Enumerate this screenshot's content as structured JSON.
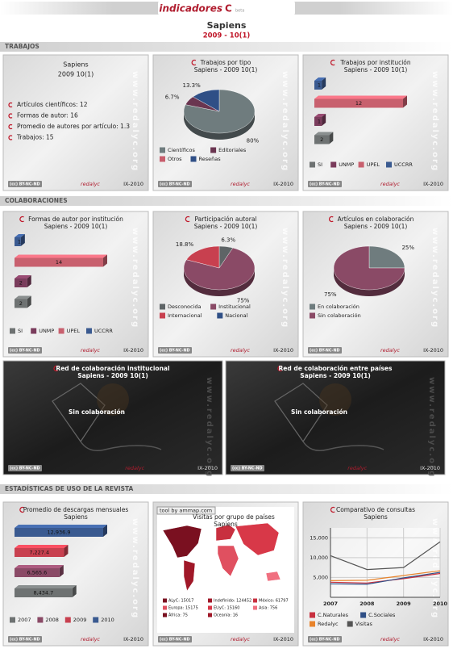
{
  "header": {
    "logo": "indicadores",
    "logo_mark": "C",
    "beta": "beta",
    "title": "Sapiens",
    "subtitle": "2009 - 10(1)"
  },
  "sections": [
    "TRABAJOS",
    "COLABORACIONES",
    "ESTADÍSTICAS DE USO DE LA REVISTA"
  ],
  "footer": {
    "license": "(cc) BY-NC-ND",
    "brand": "redalyc",
    "date": "IX-2010",
    "watermark": "www.redalyc.org"
  },
  "summary": {
    "title": "Sapiens",
    "subtitle": "2009 10(1)",
    "items": [
      "Artículos científicos: 12",
      "Formas de autor: 16",
      "Promedio de autores por artículo: 1.3",
      "Trabajos: 15"
    ]
  },
  "chart_data": [
    {
      "type": "pie",
      "title": "Trabajos por tipo",
      "subtitle": "Sapiens - 2009 10(1)",
      "categories": [
        "Científicos",
        "Editoriales",
        "Otros",
        "Reseñas"
      ],
      "values": [
        80,
        6.7,
        0,
        13.3
      ],
      "value_labels": [
        "80%",
        "6.7%",
        null,
        "13.3%"
      ],
      "colors": [
        "#6f7c7e",
        "#6a3550",
        "#c85d6c",
        "#2f4f86"
      ]
    },
    {
      "type": "hbar",
      "title": "Trabajos por institución",
      "subtitle": "Sapiens - 2009 10(1)",
      "categories": [
        "SI",
        "UNMP",
        "UPEL",
        "UCCRR"
      ],
      "values": [
        2,
        1,
        12,
        1
      ],
      "colors": [
        "#6e7272",
        "#7a3c5c",
        "#c8606e",
        "#3a5a90"
      ]
    },
    {
      "type": "hbar",
      "title": "Formas de autor por institución",
      "subtitle": "Sapiens - 2009 10(1)",
      "categories": [
        "SI",
        "UNMP",
        "UPEL",
        "UCCRR"
      ],
      "values": [
        2,
        2,
        14,
        1
      ],
      "colors": [
        "#6e7272",
        "#7a3c5c",
        "#c8606e",
        "#3a5a90"
      ]
    },
    {
      "type": "pie",
      "title": "Participación autoral",
      "subtitle": "Sapiens - 2009 10(1)",
      "categories": [
        "Desconocida",
        "Institucional",
        "Internacional",
        "Nacional"
      ],
      "values": [
        6.3,
        75,
        18.8,
        0
      ],
      "value_labels": [
        "6.3%",
        "75%",
        "18.8%",
        null
      ],
      "colors": [
        "#5e6466",
        "#8a4a66",
        "#c8404f",
        "#2f4f86"
      ]
    },
    {
      "type": "pie",
      "title": "Artículos en colaboración",
      "subtitle": "Sapiens - 2009 10(1)",
      "categories": [
        "En colaboración",
        "Sin colaboración"
      ],
      "values": [
        25,
        75
      ],
      "value_labels": [
        "25%",
        "75%"
      ],
      "colors": [
        "#6f7c7e",
        "#8a4a66"
      ]
    },
    {
      "type": "network",
      "title": "Red de colaboración institucional",
      "subtitle": "Sapiens - 2009 10(1)",
      "note": "Sin colaboración"
    },
    {
      "type": "network",
      "title": "Red de colaboración entre países",
      "subtitle": "Sapiens - 2009 10(1)",
      "note": "Sin colaboración"
    },
    {
      "type": "hbar",
      "title": "Promedio de descargas mensuales",
      "subtitle": "Sapiens",
      "categories": [
        "2007",
        "2008",
        "2009",
        "2010"
      ],
      "values": [
        8434.7,
        6565.6,
        7227.4,
        12936.9
      ],
      "value_labels": [
        "8,434.7",
        "6,565.6",
        "7,227.4",
        "12,936.9"
      ],
      "colors": [
        "#6e7272",
        "#8a4a66",
        "#c8404f",
        "#3a5a90"
      ]
    },
    {
      "type": "map",
      "title": "Visitas por grupo de países",
      "subtitle": "Sapiens",
      "credit": "tool by ammap.com",
      "labels": [
        "ALyC: 15017",
        "Indefinido: 124452",
        "México: 61797",
        "Europa: 15175",
        "EUyC: 15160",
        "Asia: 756",
        "África: 75",
        "Oceanía: 16"
      ]
    },
    {
      "type": "line",
      "title": "Comparativo de consultas",
      "subtitle": "Sapiens",
      "x": [
        2007,
        2008,
        2009,
        2010
      ],
      "xlim": [
        2007,
        2010
      ],
      "xticks": [
        2007,
        2008,
        2009,
        2010
      ],
      "ylim": [
        0,
        17500
      ],
      "yticks": [
        {
          "value": 5000,
          "label": "5,000"
        },
        {
          "value": 10000,
          "label": "10,000"
        },
        {
          "value": 15000,
          "label": "15,000"
        }
      ],
      "grid": true,
      "series": [
        {
          "name": "C.Naturales",
          "color": "#c8303f",
          "values": [
            3800,
            3600,
            4700,
            6000
          ]
        },
        {
          "name": "C.Sociales",
          "color": "#2f4f86",
          "values": [
            3400,
            3300,
            4900,
            6300
          ]
        },
        {
          "name": "Redalyc",
          "color": "#e8842c",
          "values": [
            4200,
            4300,
            5500,
            6700
          ]
        },
        {
          "name": "Visitas",
          "color": "#555555",
          "values": [
            10500,
            7000,
            7500,
            14000
          ]
        }
      ]
    }
  ]
}
